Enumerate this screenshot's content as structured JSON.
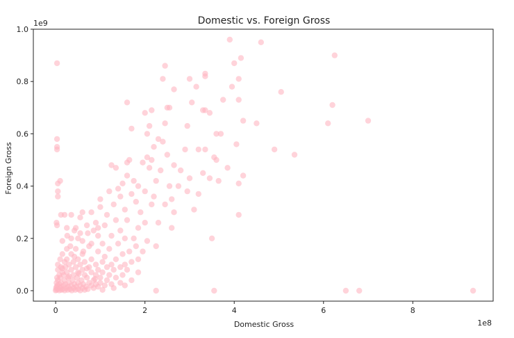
{
  "chart_data": {
    "type": "scatter",
    "title": "Domestic vs. Foreign Gross",
    "xlabel": "Domestic Gross",
    "ylabel": "Foreign Gross",
    "x_offset_label": "1e8",
    "y_offset_label": "1e9",
    "xlim": [
      -0.5,
      9.8
    ],
    "ylim": [
      -0.04,
      1.0
    ],
    "x_ticks": [
      0,
      2,
      4,
      6,
      8
    ],
    "x_tick_labels": [
      "0",
      "2",
      "4",
      "6",
      "8"
    ],
    "y_ticks": [
      0.0,
      0.2,
      0.4,
      0.6,
      0.8,
      1.0
    ],
    "y_tick_labels": [
      "0.0",
      "0.2",
      "0.4",
      "0.6",
      "0.8",
      "1.0"
    ],
    "grid": false,
    "legend": null,
    "point_color": "#FFB6C1",
    "point_alpha": 0.6,
    "series": [
      {
        "points": [
          [
            9.35,
            0.0
          ],
          [
            6.8,
            0.0
          ],
          [
            6.5,
            0.0
          ],
          [
            3.55,
            0.0
          ],
          [
            2.25,
            0.0
          ],
          [
            0.03,
            0.87
          ],
          [
            0.03,
            0.58
          ],
          [
            0.03,
            0.55
          ],
          [
            0.03,
            0.54
          ],
          [
            0.05,
            0.41
          ],
          [
            0.05,
            0.38
          ],
          [
            0.05,
            0.36
          ],
          [
            0.02,
            0.26
          ],
          [
            0.03,
            0.25
          ],
          [
            0.1,
            0.42
          ],
          [
            0.12,
            0.29
          ],
          [
            3.9,
            0.96
          ],
          [
            4.6,
            0.95
          ],
          [
            6.25,
            0.9
          ],
          [
            4.15,
            0.89
          ],
          [
            4.0,
            0.87
          ],
          [
            4.1,
            0.81
          ],
          [
            2.45,
            0.86
          ],
          [
            2.4,
            0.81
          ],
          [
            3.35,
            0.83
          ],
          [
            3.35,
            0.82
          ],
          [
            3.0,
            0.81
          ],
          [
            3.15,
            0.78
          ],
          [
            2.65,
            0.77
          ],
          [
            3.95,
            0.78
          ],
          [
            5.05,
            0.76
          ],
          [
            4.1,
            0.73
          ],
          [
            3.75,
            0.73
          ],
          [
            1.6,
            0.72
          ],
          [
            3.05,
            0.72
          ],
          [
            6.2,
            0.71
          ],
          [
            2.55,
            0.7
          ],
          [
            2.5,
            0.7
          ],
          [
            3.35,
            0.69
          ],
          [
            3.3,
            0.69
          ],
          [
            3.45,
            0.68
          ],
          [
            2.15,
            0.69
          ],
          [
            2.0,
            0.68
          ],
          [
            4.2,
            0.65
          ],
          [
            7.0,
            0.65
          ],
          [
            6.1,
            0.64
          ],
          [
            4.5,
            0.64
          ],
          [
            2.45,
            0.64
          ],
          [
            2.95,
            0.63
          ],
          [
            1.7,
            0.62
          ],
          [
            2.1,
            0.63
          ],
          [
            2.05,
            0.6
          ],
          [
            3.6,
            0.6
          ],
          [
            3.7,
            0.6
          ],
          [
            2.3,
            0.58
          ],
          [
            2.4,
            0.57
          ],
          [
            4.05,
            0.56
          ],
          [
            4.9,
            0.54
          ],
          [
            5.35,
            0.52
          ],
          [
            3.2,
            0.54
          ],
          [
            3.35,
            0.54
          ],
          [
            2.9,
            0.54
          ],
          [
            2.2,
            0.55
          ],
          [
            2.5,
            0.52
          ],
          [
            3.55,
            0.51
          ],
          [
            3.6,
            0.5
          ],
          [
            2.05,
            0.51
          ],
          [
            2.15,
            0.5
          ],
          [
            1.65,
            0.5
          ],
          [
            1.6,
            0.49
          ],
          [
            1.95,
            0.49
          ],
          [
            2.1,
            0.47
          ],
          [
            2.65,
            0.48
          ],
          [
            3.3,
            0.45
          ],
          [
            3.85,
            0.47
          ],
          [
            1.25,
            0.48
          ],
          [
            1.35,
            0.47
          ],
          [
            2.35,
            0.46
          ],
          [
            2.8,
            0.46
          ],
          [
            3.45,
            0.43
          ],
          [
            4.2,
            0.44
          ],
          [
            3.0,
            0.43
          ],
          [
            1.6,
            0.44
          ],
          [
            1.75,
            0.42
          ],
          [
            2.25,
            0.42
          ],
          [
            3.65,
            0.42
          ],
          [
            4.1,
            0.41
          ],
          [
            2.55,
            0.4
          ],
          [
            2.75,
            0.4
          ],
          [
            1.5,
            0.41
          ],
          [
            1.85,
            0.4
          ],
          [
            1.2,
            0.38
          ],
          [
            1.4,
            0.39
          ],
          [
            2.0,
            0.38
          ],
          [
            2.95,
            0.38
          ],
          [
            3.2,
            0.37
          ],
          [
            1.7,
            0.37
          ],
          [
            2.2,
            0.36
          ],
          [
            2.6,
            0.35
          ],
          [
            1.45,
            0.36
          ],
          [
            1.8,
            0.34
          ],
          [
            2.15,
            0.33
          ],
          [
            1.0,
            0.35
          ],
          [
            1.3,
            0.33
          ],
          [
            2.45,
            0.33
          ],
          [
            3.1,
            0.31
          ],
          [
            1.55,
            0.31
          ],
          [
            1.9,
            0.3
          ],
          [
            2.65,
            0.3
          ],
          [
            4.1,
            0.29
          ],
          [
            1.0,
            0.32
          ],
          [
            0.6,
            0.3
          ],
          [
            0.8,
            0.3
          ],
          [
            1.15,
            0.29
          ],
          [
            0.2,
            0.29
          ],
          [
            0.35,
            0.29
          ],
          [
            0.55,
            0.28
          ],
          [
            1.35,
            0.27
          ],
          [
            1.6,
            0.27
          ],
          [
            2.3,
            0.26
          ],
          [
            2.0,
            0.26
          ],
          [
            0.9,
            0.26
          ],
          [
            1.1,
            0.25
          ],
          [
            0.7,
            0.25
          ],
          [
            0.45,
            0.24
          ],
          [
            0.25,
            0.24
          ],
          [
            1.85,
            0.24
          ],
          [
            2.6,
            0.24
          ],
          [
            1.45,
            0.23
          ],
          [
            0.85,
            0.23
          ],
          [
            0.55,
            0.22
          ],
          [
            0.95,
            0.21
          ],
          [
            1.25,
            0.21
          ],
          [
            1.75,
            0.2
          ],
          [
            1.55,
            0.2
          ],
          [
            3.5,
            0.2
          ],
          [
            2.05,
            0.19
          ],
          [
            0.35,
            0.2
          ],
          [
            0.6,
            0.19
          ],
          [
            0.15,
            0.19
          ],
          [
            1.05,
            0.18
          ],
          [
            1.4,
            0.18
          ],
          [
            1.8,
            0.17
          ],
          [
            2.25,
            0.17
          ],
          [
            0.75,
            0.17
          ],
          [
            0.45,
            0.16
          ],
          [
            0.25,
            0.16
          ],
          [
            1.2,
            0.16
          ],
          [
            1.65,
            0.15
          ],
          [
            1.95,
            0.15
          ],
          [
            0.95,
            0.15
          ],
          [
            0.6,
            0.14
          ],
          [
            0.35,
            0.14
          ],
          [
            0.15,
            0.14
          ],
          [
            1.5,
            0.14
          ],
          [
            1.1,
            0.13
          ],
          [
            1.85,
            0.12
          ],
          [
            1.35,
            0.12
          ],
          [
            0.8,
            0.12
          ],
          [
            0.5,
            0.12
          ],
          [
            0.25,
            0.12
          ],
          [
            0.1,
            0.12
          ],
          [
            1.7,
            0.11
          ],
          [
            1.05,
            0.11
          ],
          [
            0.65,
            0.11
          ],
          [
            0.4,
            0.11
          ],
          [
            0.2,
            0.11
          ],
          [
            0.05,
            0.1
          ],
          [
            1.55,
            0.1
          ],
          [
            1.25,
            0.1
          ],
          [
            0.9,
            0.1
          ],
          [
            0.55,
            0.1
          ],
          [
            0.3,
            0.1
          ],
          [
            0.12,
            0.09
          ],
          [
            1.45,
            0.09
          ],
          [
            1.15,
            0.09
          ],
          [
            0.75,
            0.09
          ],
          [
            0.45,
            0.09
          ],
          [
            0.22,
            0.09
          ],
          [
            0.05,
            0.08
          ],
          [
            1.6,
            0.08
          ],
          [
            1.3,
            0.08
          ],
          [
            0.95,
            0.08
          ],
          [
            0.6,
            0.08
          ],
          [
            0.35,
            0.08
          ],
          [
            0.15,
            0.07
          ],
          [
            1.85,
            0.07
          ],
          [
            1.05,
            0.07
          ],
          [
            0.8,
            0.07
          ],
          [
            0.5,
            0.07
          ],
          [
            0.25,
            0.07
          ],
          [
            0.08,
            0.06
          ],
          [
            1.5,
            0.06
          ],
          [
            1.2,
            0.06
          ],
          [
            0.9,
            0.06
          ],
          [
            0.65,
            0.06
          ],
          [
            0.4,
            0.06
          ],
          [
            0.18,
            0.06
          ],
          [
            0.03,
            0.05
          ],
          [
            1.35,
            0.05
          ],
          [
            1.0,
            0.05
          ],
          [
            0.7,
            0.05
          ],
          [
            0.48,
            0.05
          ],
          [
            0.28,
            0.05
          ],
          [
            0.1,
            0.05
          ],
          [
            1.7,
            0.04
          ],
          [
            1.15,
            0.04
          ],
          [
            0.85,
            0.04
          ],
          [
            0.58,
            0.04
          ],
          [
            0.38,
            0.04
          ],
          [
            0.2,
            0.04
          ],
          [
            0.05,
            0.04
          ],
          [
            1.45,
            0.03
          ],
          [
            1.0,
            0.03
          ],
          [
            0.75,
            0.03
          ],
          [
            0.5,
            0.03
          ],
          [
            0.3,
            0.03
          ],
          [
            0.12,
            0.03
          ],
          [
            0.02,
            0.03
          ],
          [
            1.25,
            0.025
          ],
          [
            0.9,
            0.025
          ],
          [
            0.62,
            0.025
          ],
          [
            0.42,
            0.025
          ],
          [
            0.22,
            0.025
          ],
          [
            0.08,
            0.025
          ],
          [
            1.55,
            0.02
          ],
          [
            1.1,
            0.02
          ],
          [
            0.8,
            0.02
          ],
          [
            0.55,
            0.02
          ],
          [
            0.35,
            0.02
          ],
          [
            0.18,
            0.02
          ],
          [
            0.04,
            0.02
          ],
          [
            0.95,
            0.015
          ],
          [
            0.68,
            0.015
          ],
          [
            0.46,
            0.015
          ],
          [
            0.28,
            0.015
          ],
          [
            0.12,
            0.015
          ],
          [
            0.02,
            0.015
          ],
          [
            1.3,
            0.01
          ],
          [
            0.85,
            0.01
          ],
          [
            0.6,
            0.01
          ],
          [
            0.4,
            0.01
          ],
          [
            0.24,
            0.01
          ],
          [
            0.1,
            0.01
          ],
          [
            0.01,
            0.01
          ],
          [
            0.72,
            0.006
          ],
          [
            0.5,
            0.006
          ],
          [
            0.32,
            0.006
          ],
          [
            0.16,
            0.006
          ],
          [
            0.05,
            0.006
          ],
          [
            1.05,
            0.003
          ],
          [
            0.65,
            0.003
          ],
          [
            0.44,
            0.003
          ],
          [
            0.27,
            0.003
          ],
          [
            0.13,
            0.003
          ],
          [
            0.02,
            0.003
          ],
          [
            0.55,
            0.001
          ],
          [
            0.36,
            0.001
          ],
          [
            0.2,
            0.001
          ],
          [
            0.08,
            0.001
          ],
          [
            0.0,
            0.001
          ],
          [
            0.3,
            0.055
          ],
          [
            0.52,
            0.065
          ],
          [
            0.7,
            0.085
          ],
          [
            0.88,
            0.045
          ],
          [
            0.15,
            0.085
          ],
          [
            0.42,
            0.13
          ],
          [
            0.62,
            0.15
          ],
          [
            0.8,
            0.18
          ],
          [
            0.33,
            0.17
          ],
          [
            0.5,
            0.2
          ],
          [
            0.72,
            0.22
          ],
          [
            0.95,
            0.24
          ],
          [
            0.26,
            0.21
          ],
          [
            0.42,
            0.23
          ]
        ]
      }
    ]
  }
}
